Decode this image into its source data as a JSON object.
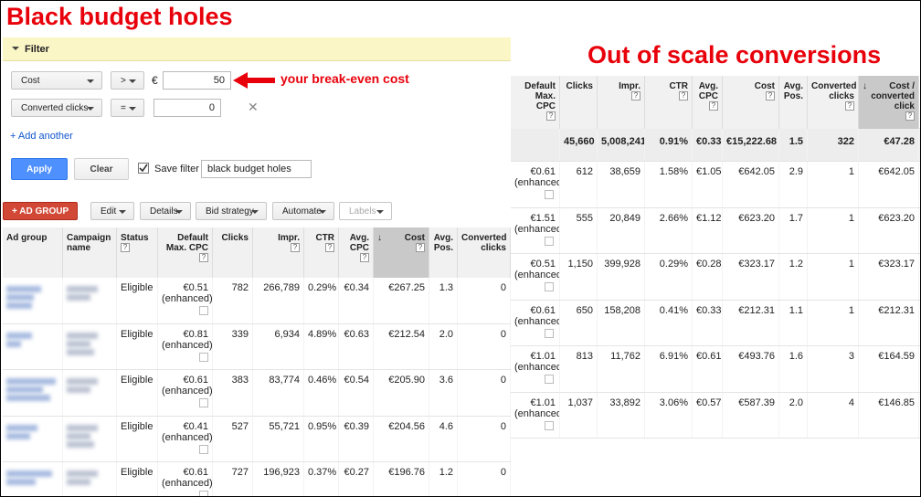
{
  "titles": {
    "left": "Black budget holes",
    "right": "Out of scale conversions"
  },
  "filter": {
    "header": "Filter",
    "rows": [
      {
        "field": "Cost",
        "operator": ">",
        "currency": "€",
        "value": "50"
      },
      {
        "field": "Converted clicks",
        "operator": "=",
        "value": "0",
        "remove_icon": "✕"
      }
    ],
    "annotation": "your break-even cost",
    "add_another": "+ Add another",
    "apply": "Apply",
    "clear": "Clear",
    "save_filter": "Save filter",
    "filter_name": "black budget holes"
  },
  "toolbar": {
    "add_group": "+ AD GROUP",
    "buttons": [
      "Edit",
      "Details",
      "Bid strategy",
      "Automate",
      "Labels"
    ]
  },
  "left_table": {
    "help_icon": "?",
    "sort_icon": "↓",
    "columns": [
      {
        "label": "Ad group"
      },
      {
        "label": "Campaign name"
      },
      {
        "label": "Status",
        "help": true
      },
      {
        "label": "Default Max. CPC",
        "help": true
      },
      {
        "label": "Clicks"
      },
      {
        "label": "Impr.",
        "help": true
      },
      {
        "label": "CTR",
        "help": true
      },
      {
        "label": "Avg. CPC",
        "help": true
      },
      {
        "label": "Cost",
        "help": true,
        "sorted": true
      },
      {
        "label": "Avg. Pos."
      },
      {
        "label": "Converted clicks"
      }
    ],
    "rows": [
      {
        "status": "Eligible",
        "max_cpc": "€0.51",
        "max_cpc_note": "(enhanced)",
        "metrics": [
          "782",
          "266,789",
          "0.29%",
          "€0.34",
          "€267.25",
          "1.3",
          "0"
        ]
      },
      {
        "status": "Eligible",
        "max_cpc": "€0.81",
        "max_cpc_note": "(enhanced)",
        "metrics": [
          "339",
          "6,934",
          "4.89%",
          "€0.63",
          "€212.54",
          "2.0",
          "0"
        ]
      },
      {
        "status": "Eligible",
        "max_cpc": "€0.61",
        "max_cpc_note": "(enhanced)",
        "metrics": [
          "383",
          "83,774",
          "0.46%",
          "€0.54",
          "€205.90",
          "3.6",
          "0"
        ]
      },
      {
        "status": "Eligible",
        "max_cpc": "€0.41",
        "max_cpc_note": "(enhanced)",
        "metrics": [
          "527",
          "55,721",
          "0.95%",
          "€0.39",
          "€204.56",
          "4.6",
          "0"
        ]
      },
      {
        "status": "Eligible",
        "max_cpc": "€0.61",
        "max_cpc_note": "(enhanced)",
        "metrics": [
          "727",
          "196,923",
          "0.37%",
          "€0.27",
          "€196.76",
          "1.2",
          "0"
        ]
      }
    ]
  },
  "right_table": {
    "help_icon": "?",
    "sort_icon": "↓",
    "columns": [
      {
        "label": "Default Max. CPC",
        "help": true
      },
      {
        "label": "Clicks"
      },
      {
        "label": "Impr.",
        "help": true
      },
      {
        "label": "CTR",
        "help": true
      },
      {
        "label": "Avg. CPC",
        "help": true
      },
      {
        "label": "Cost",
        "help": true
      },
      {
        "label": "Avg. Pos."
      },
      {
        "label": "Converted clicks",
        "help": true
      },
      {
        "label": "Cost / converted click",
        "help": true,
        "sorted": true
      }
    ],
    "total": {
      "metrics": [
        "45,660",
        "5,008,241",
        "0.91%",
        "€0.33",
        "€15,222.68",
        "1.5",
        "322",
        "€47.28"
      ]
    },
    "rows": [
      {
        "max_cpc": "€0.61",
        "max_cpc_note": "(enhanced)",
        "metrics": [
          "612",
          "38,659",
          "1.58%",
          "€1.05",
          "€642.05",
          "2.9",
          "1",
          "€642.05"
        ]
      },
      {
        "max_cpc": "€1.51",
        "max_cpc_note": "(enhanced)",
        "metrics": [
          "555",
          "20,849",
          "2.66%",
          "€1.12",
          "€623.20",
          "1.7",
          "1",
          "€623.20"
        ]
      },
      {
        "max_cpc": "€0.51",
        "max_cpc_note": "(enhanced)",
        "metrics": [
          "1,150",
          "399,928",
          "0.29%",
          "€0.28",
          "€323.17",
          "1.2",
          "1",
          "€323.17"
        ]
      },
      {
        "max_cpc": "€0.61",
        "max_cpc_note": "(enhanced)",
        "metrics": [
          "650",
          "158,208",
          "0.41%",
          "€0.33",
          "€212.31",
          "1.1",
          "1",
          "€212.31"
        ]
      },
      {
        "max_cpc": "€1.01",
        "max_cpc_note": "(enhanced)",
        "metrics": [
          "813",
          "11,762",
          "6.91%",
          "€0.61",
          "€493.76",
          "1.6",
          "3",
          "€164.59"
        ]
      },
      {
        "max_cpc": "€1.01",
        "max_cpc_note": "(enhanced)",
        "metrics": [
          "1,037",
          "33,892",
          "3.06%",
          "€0.57",
          "€587.39",
          "2.0",
          "4",
          "€146.85"
        ]
      }
    ]
  }
}
